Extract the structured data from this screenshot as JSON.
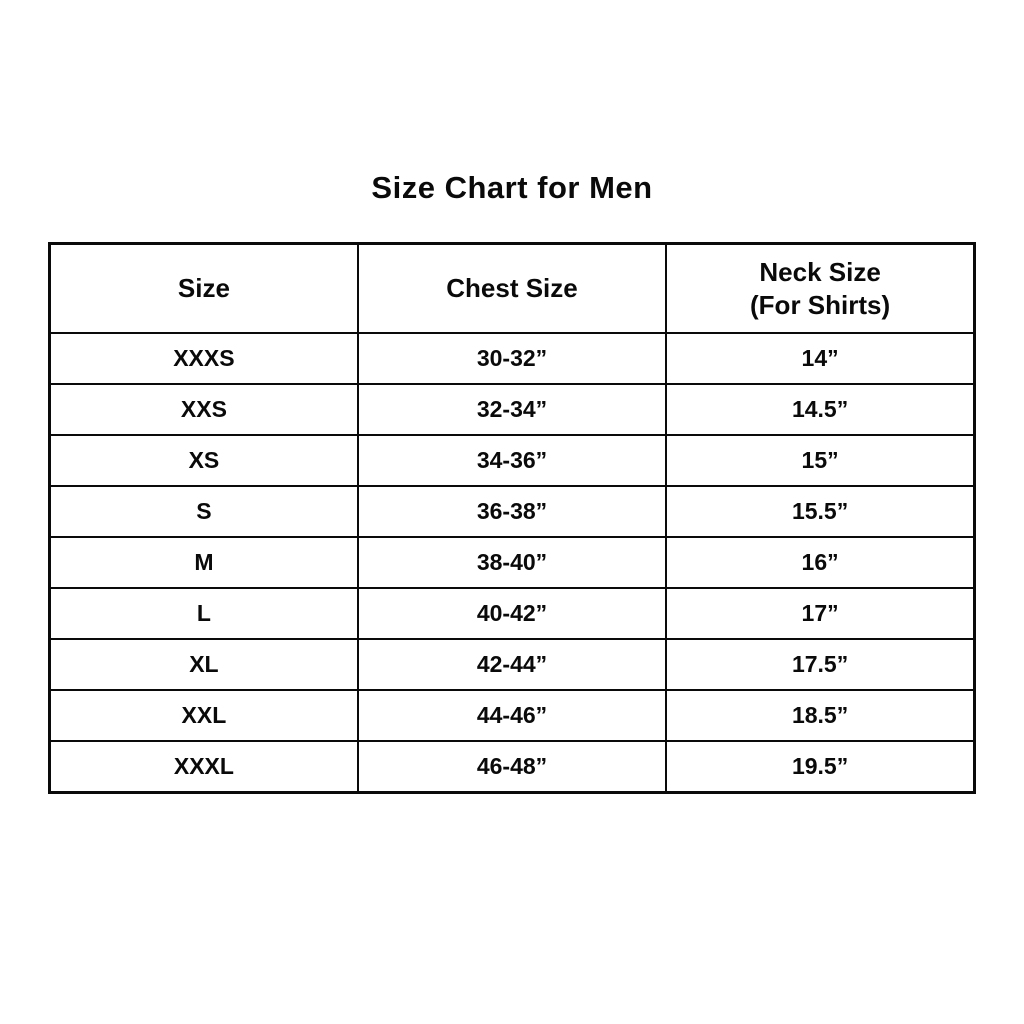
{
  "chart_data": {
    "type": "table",
    "title": "Size Chart for Men",
    "columns": [
      {
        "label": "Size",
        "sublabel": ""
      },
      {
        "label": "Chest Size",
        "sublabel": ""
      },
      {
        "label": "Neck Size",
        "sublabel": "(For Shirts)"
      }
    ],
    "rows": [
      [
        "XXXS",
        "30-32”",
        "14”"
      ],
      [
        "XXS",
        "32-34”",
        "14.5”"
      ],
      [
        "XS",
        "34-36”",
        "15”"
      ],
      [
        "S",
        "36-38”",
        "15.5”"
      ],
      [
        "M",
        "38-40”",
        "16”"
      ],
      [
        "L",
        "40-42”",
        "17”"
      ],
      [
        "XL",
        "42-44”",
        "17.5”"
      ],
      [
        "XXL",
        "44-46”",
        "18.5”"
      ],
      [
        "XXXL",
        "46-48”",
        "19.5”"
      ]
    ]
  }
}
